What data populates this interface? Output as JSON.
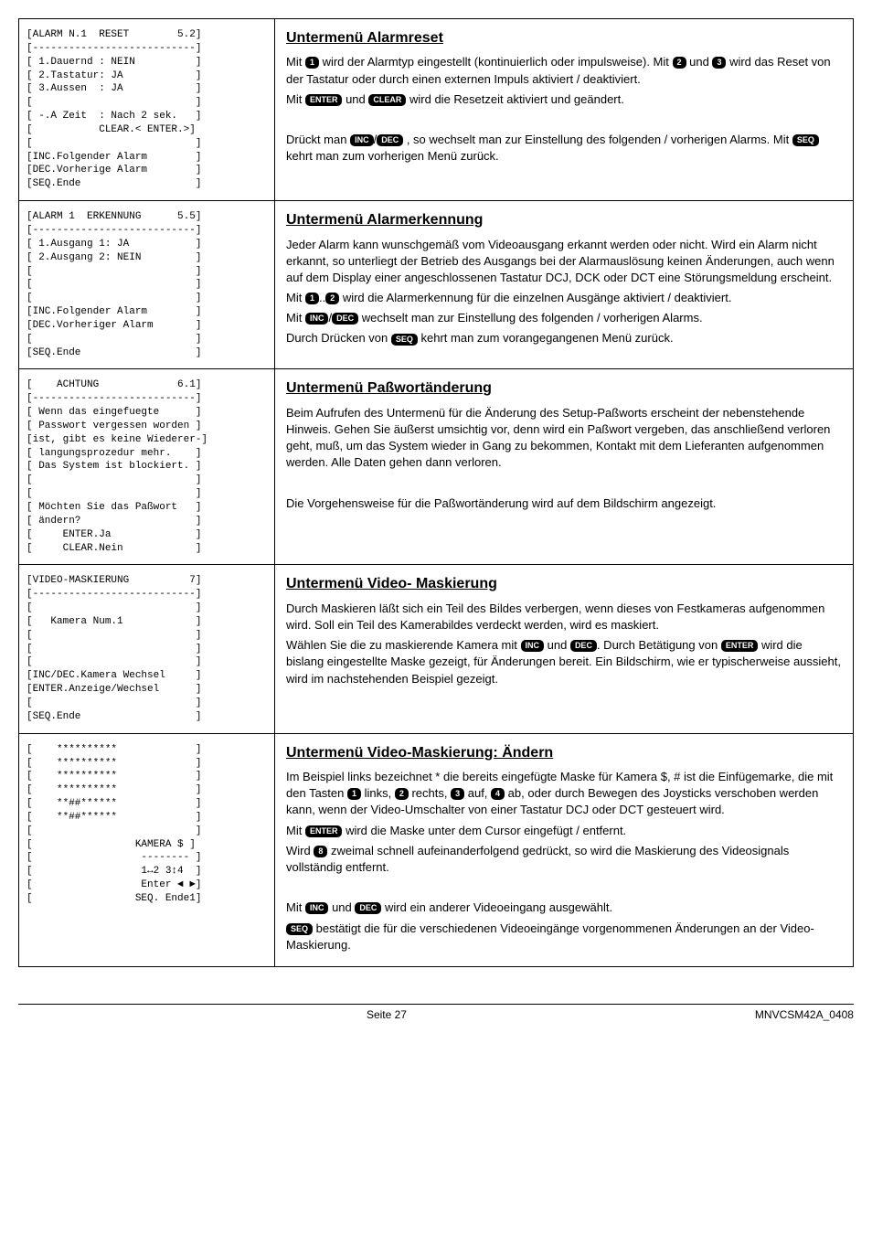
{
  "sections": [
    {
      "left": "[ALARM N.1  RESET        5.2]\n[---------------------------]\n[ 1.Dauernd : NEIN          ]\n[ 2.Tastatur: JA            ]\n[ 3.Aussen  : JA            ]\n[                           ]\n[ -.A Zeit  : Nach 2 sek.   ]\n[           CLEAR.< ENTER.>]\n[                           ]\n[INC.Folgender Alarm        ]\n[DEC.Vorherige Alarm        ]\n[SEQ.Ende                   ]",
      "title": "Untermenü Alarmreset",
      "body": [
        "Mit {1} wird der Alarmtyp eingestellt (kontinuierlich oder impulsweise). Mit {2} und {3} wird das Reset von der Tastatur oder durch einen externen Impuls aktiviert / deaktiviert.",
        "Mit {ENTER} und {CLEAR} wird die Resetzeit aktiviert und geändert.",
        " ",
        "Drückt man {INC}/{DEC} , so wechselt man zur Einstellung des folgenden / vorherigen Alarms. Mit {SEQ} kehrt man zum vorherigen Menü zurück."
      ]
    },
    {
      "left": "[ALARM 1  ERKENNUNG      5.5]\n[---------------------------]\n[ 1.Ausgang 1: JA           ]\n[ 2.Ausgang 2: NEIN         ]\n[                           ]\n[                           ]\n[                           ]\n[INC.Folgender Alarm        ]\n[DEC.Vorheriger Alarm       ]\n[                           ]\n[SEQ.Ende                   ]",
      "title": "Untermenü Alarmerkennung",
      "body": [
        "Jeder Alarm kann wunschgemäß vom Videoausgang erkannt werden oder nicht. Wird ein Alarm nicht erkannt, so unterliegt der Betrieb des Ausgangs bei der Alarmauslösung keinen Änderungen, auch wenn auf dem Display einer angeschlossenen Tastatur DCJ, DCK oder DCT eine Störungsmeldung erscheint.",
        "Mit {1}..{2} wird die Alarmerkennung für die einzelnen Ausgänge aktiviert / deaktiviert.",
        "Mit {INC}/{DEC} wechselt man zur Einstellung des folgenden / vorherigen Alarms.",
        "Durch Drücken von {SEQ} kehrt man zum vorangegangenen Menü zurück."
      ]
    },
    {
      "left": "[    ACHTUNG             6.1]\n[---------------------------]\n[ Wenn das eingefuegte      ]\n[ Passwort vergessen worden ]\n[ist, gibt es keine Wiederer-]\n[ langungsprozedur mehr.    ]\n[ Das System ist blockiert. ]\n[                           ]\n[                           ]\n[ Möchten Sie das Paßwort   ]\n[ ändern?                   ]\n[     ENTER.Ja              ]\n[     CLEAR.Nein            ]",
      "title": "Untermenü Paßwortänderung",
      "body": [
        "Beim Aufrufen des Untermenü für die Änderung des Setup-Paßworts erscheint der nebenstehende Hinweis. Gehen Sie äußerst umsichtig vor, denn wird ein Paßwort vergeben, das anschließend verloren geht, muß, um das System wieder in Gang zu bekommen, Kontakt mit dem Lieferanten aufgenommen werden. Alle Daten gehen dann verloren.",
        " ",
        "Die Vorgehensweise für die Paßwortänderung wird auf dem Bildschirm angezeigt."
      ]
    },
    {
      "left": "[VIDEO-MASKIERUNG          7]\n[---------------------------]\n[                           ]\n[   Kamera Num.1            ]\n[                           ]\n[                           ]\n[                           ]\n[INC/DEC.Kamera Wechsel     ]\n[ENTER.Anzeige/Wechsel      ]\n[                           ]\n[SEQ.Ende                   ]",
      "title": "Untermenü Video- Maskierung",
      "body": [
        "Durch Maskieren läßt sich ein Teil des Bildes verbergen, wenn dieses von Festkameras aufgenommen wird. Soll ein Teil des Kamerabildes verdeckt werden, wird es maskiert.",
        "Wählen Sie die zu maskierende Kamera mit {INC} und {DEC}. Durch Betätigung von {ENTER} wird die bislang eingestellte Maske gezeigt, für Änderungen bereit. Ein Bildschirm, wie er typischerweise aussieht, wird im nachstehenden Beispiel gezeigt."
      ]
    },
    {
      "left": "[    **********             ]\n[    **********             ]\n[    **********             ]\n[    **********             ]\n[    **##******             ]\n[    **##******             ]\n[                           ]\n[                 KAMERA $ ]\n[                  -------- ]\n[                  1↔2 3↕4  ]\n[                  Enter ◄ ►]\n[                 SEQ. Ende1]",
      "title": "Untermenü Video-Maskierung: Ändern",
      "body": [
        "Im Beispiel links bezeichnet * die bereits eingefügte Maske für Kamera $, # ist die Einfügemarke, die mit den Tasten {1} links, {2} rechts, {3} auf, {4} ab, oder durch Bewegen des Joysticks verschoben werden kann, wenn der Video-Umschalter von einer Tastatur DCJ oder DCT gesteuert wird.",
        "Mit {ENTER} wird die Maske unter dem Cursor eingefügt / entfernt.",
        "Wird {8} zweimal schnell aufeinanderfolgend gedrückt, so wird die Maskierung des Videosignals vollständig entfernt.",
        " ",
        "Mit {INC} und {DEC} wird ein anderer Videoeingang ausgewählt.",
        "{SEQ} bestätigt die für die verschiedenen Videoeingänge vorgenommenen Änderungen an der Video-Maskierung."
      ]
    }
  ],
  "footer": {
    "center": "Seite 27",
    "right": "MNVCSM42A_0408"
  }
}
